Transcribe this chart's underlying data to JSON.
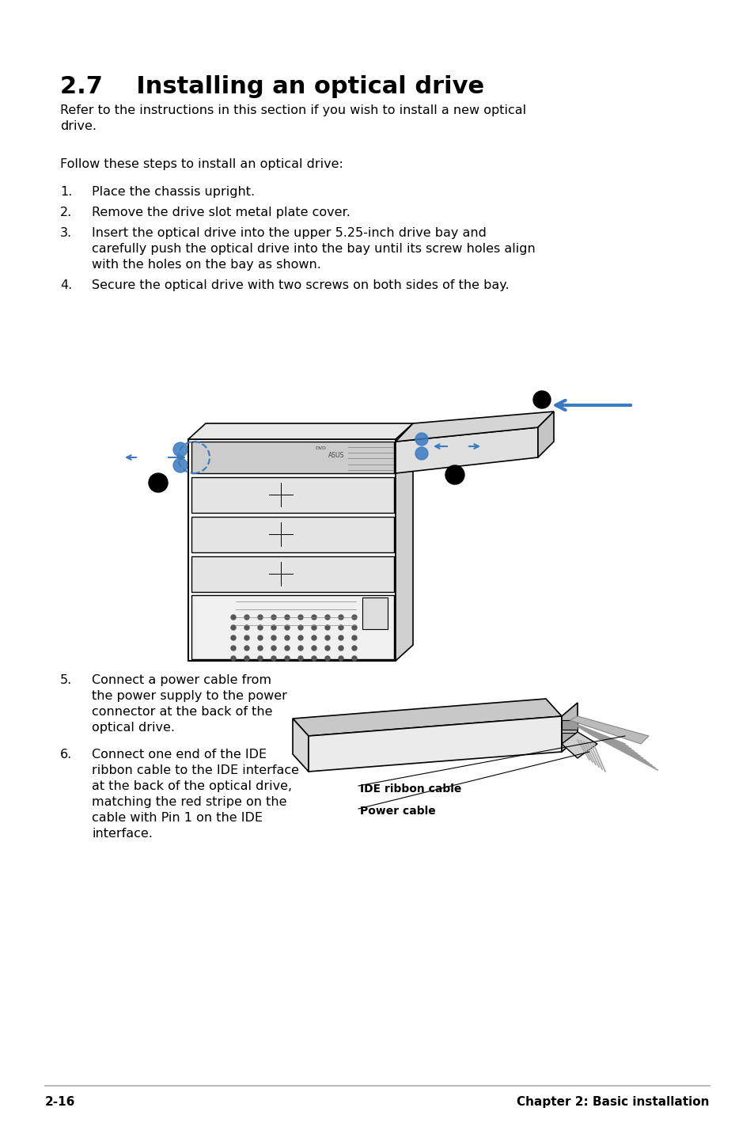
{
  "bg_color": "#ffffff",
  "title": "2.7    Installing an optical drive",
  "title_fontsize": 22,
  "title_fontweight": "bold",
  "body_fontsize": 11.5,
  "intro1": "Refer to the instructions in this section if you wish to install a new optical",
  "intro2": "drive.",
  "follow": "Follow these steps to install an optical drive:",
  "steps": [
    {
      "num": "1.",
      "text": "Place the chassis upright."
    },
    {
      "num": "2.",
      "text": "Remove the drive slot metal plate cover."
    },
    {
      "num": "3.",
      "text": "Insert the optical drive into the upper 5.25-inch drive bay and\ncarefully push the optical drive into the bay until its screw holes align\nwith the holes on the bay as shown."
    },
    {
      "num": "4.",
      "text": "Secure the optical drive with two screws on both sides of the bay."
    }
  ],
  "steps2": [
    {
      "num": "5.",
      "text": "Connect a power cable from\nthe power supply to the power\nconnector at the back of the\noptical drive."
    },
    {
      "num": "6.",
      "text": "Connect one end of the IDE\nribbon cable to the IDE interface\nat the back of the optical drive,\nmatching the red stripe on the\ncable with Pin 1 on the IDE\ninterface."
    }
  ],
  "footer_left": "2-16",
  "footer_right": "Chapter 2: Basic installation",
  "footer_fontsize": 11,
  "footer_fontweight": "bold"
}
